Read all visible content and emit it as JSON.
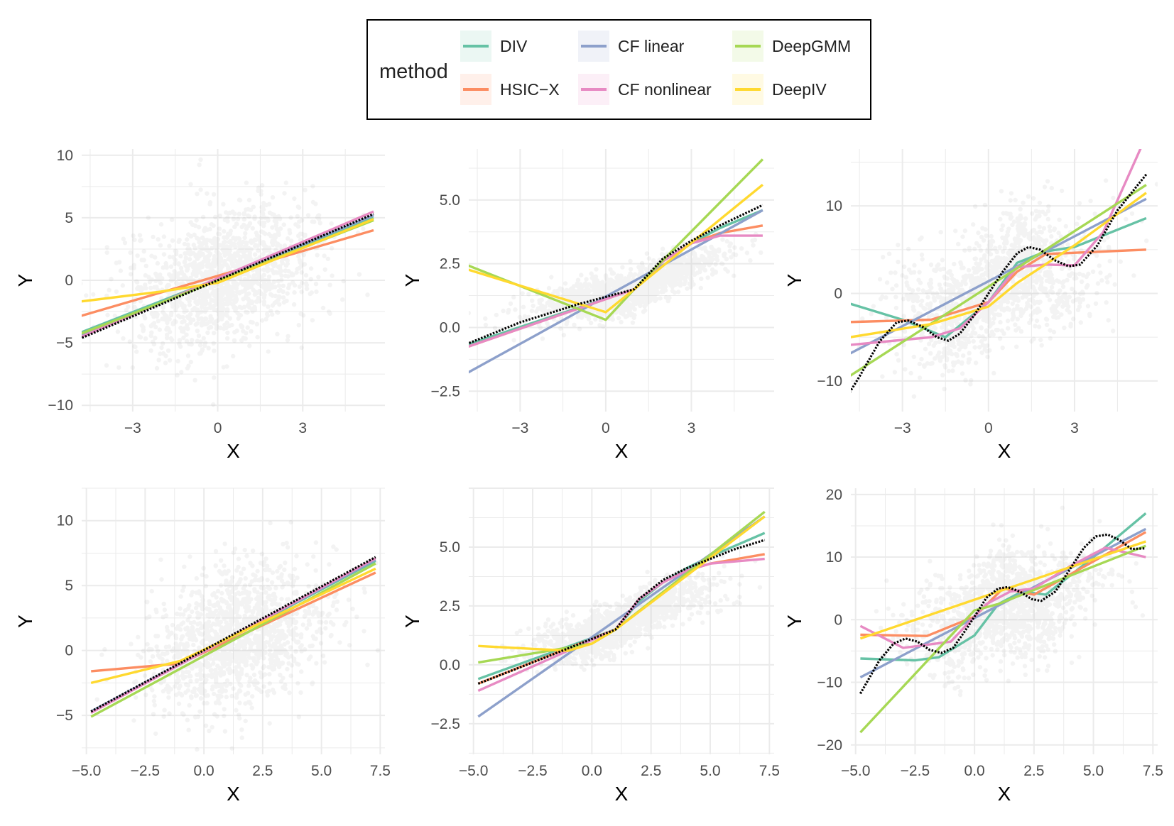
{
  "legend": {
    "title": "method",
    "entries": [
      {
        "label": "DIV",
        "color": "#66C2A5"
      },
      {
        "label": "HSIC−X",
        "color": "#FC8D62"
      },
      {
        "label": "CF linear",
        "color": "#8DA0CB"
      },
      {
        "label": "CF nonlinear",
        "color": "#E78AC3"
      },
      {
        "label": "DeepGMM",
        "color": "#A6D854"
      },
      {
        "label": "DeepIV",
        "color": "#FFD92F"
      }
    ]
  },
  "chart_data": [
    {
      "type": "line",
      "row": 1,
      "col": 1,
      "xlabel": "X",
      "ylabel": "Y",
      "xlim": [
        -4.8,
        5.9
      ],
      "ylim": [
        -10.5,
        10.5
      ],
      "xticks": [
        -3,
        0,
        3
      ],
      "xtick_labels": [
        "−3",
        "0",
        "3"
      ],
      "yticks": [
        -10,
        -5,
        0,
        5,
        10
      ],
      "ytick_labels": [
        "−10",
        "−5",
        "0",
        "5",
        "10"
      ],
      "scatter": {
        "color": "#bebebe",
        "x_center": 0.2,
        "x_sd": 1.7,
        "y_center": 0.3,
        "y_sd": 2.7
      },
      "truth": {
        "x": [
          -5.2,
          5.5
        ],
        "y": [
          -5.0,
          5.3
        ]
      },
      "series": [
        {
          "name": "DIV",
          "x": [
            -5.2,
            5.5
          ],
          "y": [
            -4.5,
            5.0
          ]
        },
        {
          "name": "HSIC−X",
          "x": [
            -5.2,
            5.5
          ],
          "y": [
            -3.1,
            4.0
          ]
        },
        {
          "name": "CF linear",
          "x": [
            -5.2,
            5.5
          ],
          "y": [
            -4.8,
            5.2
          ]
        },
        {
          "name": "CF nonlinear",
          "x": [
            -5.2,
            5.5
          ],
          "y": [
            -4.9,
            5.5
          ]
        },
        {
          "name": "DeepGMM",
          "x": [
            -5.2,
            5.5
          ],
          "y": [
            -4.6,
            4.8
          ]
        },
        {
          "name": "DeepIV",
          "x": [
            -5.2,
            -2,
            0,
            5.5
          ],
          "y": [
            -1.8,
            -0.9,
            -0.2,
            4.9
          ]
        }
      ]
    },
    {
      "type": "line",
      "row": 1,
      "col": 2,
      "xlabel": "X",
      "ylabel": "Y",
      "xlim": [
        -4.8,
        5.9
      ],
      "ylim": [
        -3.3,
        7.0
      ],
      "xticks": [
        -3,
        0,
        3
      ],
      "xtick_labels": [
        "−3",
        "0",
        "3"
      ],
      "yticks": [
        -2.5,
        0,
        2.5,
        5
      ],
      "ytick_labels": [
        "−2.5",
        "0.0",
        "2.5",
        "5.0"
      ],
      "scatter": {
        "color": "#bebebe",
        "x_center": 0.8,
        "x_sd": 1.6,
        "y_center": 1.2,
        "y_sd": 0.4
      },
      "truth": {
        "x": [
          -5.2,
          -3,
          -1,
          1,
          2,
          3,
          4,
          5.5
        ],
        "y": [
          -0.8,
          0.2,
          0.9,
          1.5,
          2.7,
          3.4,
          4.0,
          4.8
        ]
      },
      "series": [
        {
          "name": "DIV",
          "x": [
            -5.2,
            1,
            2,
            3,
            4,
            5.5
          ],
          "y": [
            -0.8,
            1.5,
            2.6,
            3.3,
            3.9,
            4.6
          ]
        },
        {
          "name": "HSIC−X",
          "x": [
            -5.2,
            1,
            2,
            3,
            4,
            5.5
          ],
          "y": [
            -0.9,
            1.5,
            2.6,
            3.3,
            3.7,
            4.0
          ]
        },
        {
          "name": "CF linear",
          "x": [
            -5.2,
            5.5
          ],
          "y": [
            -2.0,
            4.6
          ]
        },
        {
          "name": "CF nonlinear",
          "x": [
            -5.2,
            1,
            2,
            3,
            4,
            5.5
          ],
          "y": [
            -0.9,
            1.5,
            2.6,
            3.3,
            3.6,
            3.6
          ]
        },
        {
          "name": "DeepGMM",
          "x": [
            -5.2,
            0,
            1,
            5.5
          ],
          "y": [
            2.6,
            0.3,
            1.5,
            6.6
          ]
        },
        {
          "name": "DeepIV",
          "x": [
            -5.2,
            0,
            1,
            5.5
          ],
          "y": [
            2.4,
            0.6,
            1.5,
            5.6
          ]
        }
      ]
    },
    {
      "type": "line",
      "row": 1,
      "col": 3,
      "xlabel": "X",
      "ylabel": "Y",
      "xlim": [
        -4.8,
        5.9
      ],
      "ylim": [
        -13.5,
        16.5
      ],
      "xticks": [
        -3,
        0,
        3
      ],
      "xtick_labels": [
        "−3",
        "0",
        "3"
      ],
      "yticks": [
        -10,
        0,
        10
      ],
      "ytick_labels": [
        "−10",
        "0",
        "10"
      ],
      "scatter": {
        "color": "#bebebe",
        "x_center": 0.3,
        "x_sd": 1.7,
        "y_center": 0.5,
        "y_sd": 3.6
      },
      "truth": {
        "x": [
          -5.2,
          -4.5,
          -3.8,
          -3.2,
          -2.8,
          -2.3,
          -1.8,
          -1.4,
          -1.0,
          -0.5,
          0,
          0.5,
          1.0,
          1.4,
          1.8,
          2.3,
          2.8,
          3.2,
          3.8,
          4.5,
          5.5
        ],
        "y": [
          -13.2,
          -9.5,
          -5.5,
          -3.3,
          -3.1,
          -3.8,
          -5.0,
          -5.4,
          -4.6,
          -2.5,
          0,
          2.5,
          4.6,
          5.3,
          5.0,
          3.8,
          3.1,
          3.3,
          5.5,
          9.5,
          13.6
        ]
      },
      "series": [
        {
          "name": "DIV",
          "x": [
            -5.2,
            -3,
            -1.5,
            0,
            1,
            2,
            3,
            5.5
          ],
          "y": [
            -0.8,
            -3.0,
            -5.0,
            -1.0,
            3.5,
            4.8,
            5.3,
            8.6
          ]
        },
        {
          "name": "HSIC−X",
          "x": [
            -5.2,
            -2,
            0,
            1,
            2,
            5.5
          ],
          "y": [
            -3.3,
            -3.0,
            -1.0,
            2.5,
            4.5,
            5.0
          ]
        },
        {
          "name": "CF linear",
          "x": [
            -5.2,
            5.5
          ],
          "y": [
            -7.5,
            10.8
          ]
        },
        {
          "name": "CF nonlinear",
          "x": [
            -5.2,
            -2,
            -1,
            0,
            1,
            2,
            3,
            4,
            5.5
          ],
          "y": [
            -6.0,
            -5.0,
            -4.0,
            -1.0,
            3.0,
            3.3,
            3.2,
            7.0,
            18.0
          ]
        },
        {
          "name": "DeepGMM",
          "x": [
            -5.2,
            5.5
          ],
          "y": [
            -10.2,
            12.4
          ]
        },
        {
          "name": "DeepIV",
          "x": [
            -5.2,
            -2,
            0,
            1,
            3,
            5.5
          ],
          "y": [
            -5.2,
            -3.5,
            -1.5,
            1.2,
            5.5,
            11.5
          ]
        }
      ]
    },
    {
      "type": "line",
      "row": 2,
      "col": 1,
      "xlabel": "X",
      "ylabel": "Y",
      "xlim": [
        -5.2,
        7.7
      ],
      "ylim": [
        -8.0,
        12.5
      ],
      "xticks": [
        -5,
        -2.5,
        0,
        2.5,
        5,
        7.5
      ],
      "xtick_labels": [
        "−5.0",
        "−2.5",
        "0.0",
        "2.5",
        "5.0",
        "7.5"
      ],
      "yticks": [
        -5,
        0,
        5,
        10
      ],
      "ytick_labels": [
        "−5",
        "0",
        "5",
        "10"
      ],
      "scatter": {
        "color": "#bebebe",
        "x_center": 1.4,
        "x_sd": 1.9,
        "y_center": 0.6,
        "y_sd": 2.6
      },
      "truth": {
        "x": [
          -4.8,
          7.3
        ],
        "y": [
          -4.7,
          7.2
        ]
      },
      "series": [
        {
          "name": "DIV",
          "x": [
            -4.8,
            7.3
          ],
          "y": [
            -4.7,
            6.9
          ]
        },
        {
          "name": "HSIC−X",
          "x": [
            -4.8,
            -1,
            7.3
          ],
          "y": [
            -1.6,
            -1.0,
            6.0
          ]
        },
        {
          "name": "CF linear",
          "x": [
            -4.8,
            7.3
          ],
          "y": [
            -4.7,
            7.0
          ]
        },
        {
          "name": "CF nonlinear",
          "x": [
            -4.8,
            7.3
          ],
          "y": [
            -4.8,
            7.1
          ]
        },
        {
          "name": "DeepGMM",
          "x": [
            -4.8,
            7.3
          ],
          "y": [
            -5.1,
            6.7
          ]
        },
        {
          "name": "DeepIV",
          "x": [
            -4.8,
            -1,
            7.3
          ],
          "y": [
            -2.5,
            -0.8,
            6.3
          ]
        }
      ]
    },
    {
      "type": "line",
      "row": 2,
      "col": 2,
      "xlabel": "X",
      "ylabel": "Y",
      "xlim": [
        -5.2,
        7.7
      ],
      "ylim": [
        -3.8,
        7.5
      ],
      "xticks": [
        -5,
        -2.5,
        0,
        2.5,
        5,
        7.5
      ],
      "xtick_labels": [
        "−5.0",
        "−2.5",
        "0.0",
        "2.5",
        "5.0",
        "7.5"
      ],
      "yticks": [
        -2.5,
        0,
        2.5,
        5
      ],
      "ytick_labels": [
        "−2.5",
        "0.0",
        "2.5",
        "5.0"
      ],
      "scatter": {
        "color": "#bebebe",
        "x_center": 1.3,
        "x_sd": 1.9,
        "y_center": 1.4,
        "y_sd": 0.5
      },
      "truth": {
        "x": [
          -4.8,
          -2,
          0,
          1,
          2,
          3,
          4,
          5,
          6,
          7.3
        ],
        "y": [
          -0.8,
          0.3,
          1.1,
          1.5,
          2.8,
          3.6,
          4.1,
          4.5,
          4.9,
          5.3
        ]
      },
      "series": [
        {
          "name": "DIV",
          "x": [
            -4.8,
            1,
            2,
            3,
            4,
            5,
            7.3
          ],
          "y": [
            -0.6,
            1.5,
            2.7,
            3.5,
            4.1,
            4.6,
            5.6
          ]
        },
        {
          "name": "HSIC−X",
          "x": [
            -4.8,
            1,
            2,
            3,
            4,
            5,
            7.3
          ],
          "y": [
            -0.8,
            1.5,
            2.8,
            3.5,
            4.0,
            4.3,
            4.7
          ]
        },
        {
          "name": "CF linear",
          "x": [
            -4.8,
            7.3
          ],
          "y": [
            -2.2,
            6.3
          ]
        },
        {
          "name": "CF nonlinear",
          "x": [
            -4.8,
            1,
            2,
            3,
            4,
            5,
            7.3
          ],
          "y": [
            -1.1,
            1.5,
            2.8,
            3.5,
            4.0,
            4.3,
            4.5
          ]
        },
        {
          "name": "DeepGMM",
          "x": [
            -4.8,
            0,
            1,
            7.3
          ],
          "y": [
            0.1,
            0.9,
            1.5,
            6.5
          ]
        },
        {
          "name": "DeepIV",
          "x": [
            -4.8,
            -1,
            0,
            1,
            7.3
          ],
          "y": [
            0.8,
            0.6,
            0.9,
            1.5,
            6.3
          ]
        }
      ]
    },
    {
      "type": "line",
      "row": 2,
      "col": 3,
      "xlabel": "X",
      "ylabel": "Y",
      "xlim": [
        -5.2,
        7.7
      ],
      "ylim": [
        -21.5,
        21.0
      ],
      "xticks": [
        -5,
        -2.5,
        0,
        2.5,
        5,
        7.5
      ],
      "xtick_labels": [
        "−5.0",
        "−2.5",
        "0.0",
        "2.5",
        "5.0",
        "7.5"
      ],
      "yticks": [
        -20,
        -10,
        0,
        10,
        20
      ],
      "ytick_labels": [
        "−20",
        "−10",
        "0",
        "10",
        "20"
      ],
      "scatter": {
        "color": "#bebebe",
        "x_center": 1.3,
        "x_sd": 1.9,
        "y_center": 1.0,
        "y_sd": 4.2
      },
      "truth": {
        "x": [
          -4.8,
          -4.0,
          -3.4,
          -2.9,
          -2.4,
          -1.9,
          -1.4,
          -0.9,
          -0.4,
          0,
          0.5,
          1.0,
          1.4,
          1.9,
          2.4,
          2.8,
          3.4,
          4.0,
          4.6,
          5.1,
          5.6,
          6.1,
          6.6,
          7.2
        ],
        "y": [
          -11.8,
          -6.5,
          -3.8,
          -3.0,
          -3.5,
          -4.8,
          -5.3,
          -4.5,
          -1.8,
          0.5,
          3.5,
          5.0,
          5.2,
          4.5,
          3.3,
          3.0,
          4.5,
          8.0,
          11.5,
          13.3,
          13.6,
          12.7,
          11.3,
          11.4
        ]
      },
      "series": [
        {
          "name": "DIV",
          "x": [
            -4.8,
            -2.5,
            -1.5,
            0,
            1,
            2,
            3,
            5,
            7.2
          ],
          "y": [
            -6.2,
            -6.5,
            -6.0,
            -2.5,
            2.5,
            4.5,
            4.0,
            10.0,
            17.0
          ]
        },
        {
          "name": "HSIC−X",
          "x": [
            -4.8,
            -2,
            0,
            1.2,
            2.5,
            7.2
          ],
          "y": [
            -2.4,
            -2.6,
            0.5,
            5.0,
            4.0,
            14.0
          ]
        },
        {
          "name": "CF linear",
          "x": [
            -4.8,
            7.2
          ],
          "y": [
            -9.2,
            14.5
          ]
        },
        {
          "name": "CF nonlinear",
          "x": [
            -4.8,
            -3,
            -1,
            0.5,
            1.5,
            2.5,
            4,
            5.5,
            7.2
          ],
          "y": [
            -1.0,
            -4.5,
            -3.5,
            2.5,
            4.5,
            5.0,
            8.5,
            11.5,
            10.0
          ]
        },
        {
          "name": "DeepGMM",
          "x": [
            -4.8,
            0,
            1,
            7.2
          ],
          "y": [
            -18.0,
            1.5,
            2.5,
            11.8
          ]
        },
        {
          "name": "DeepIV",
          "x": [
            -4.8,
            7.2
          ],
          "y": [
            -3.0,
            12.5
          ]
        }
      ]
    }
  ]
}
